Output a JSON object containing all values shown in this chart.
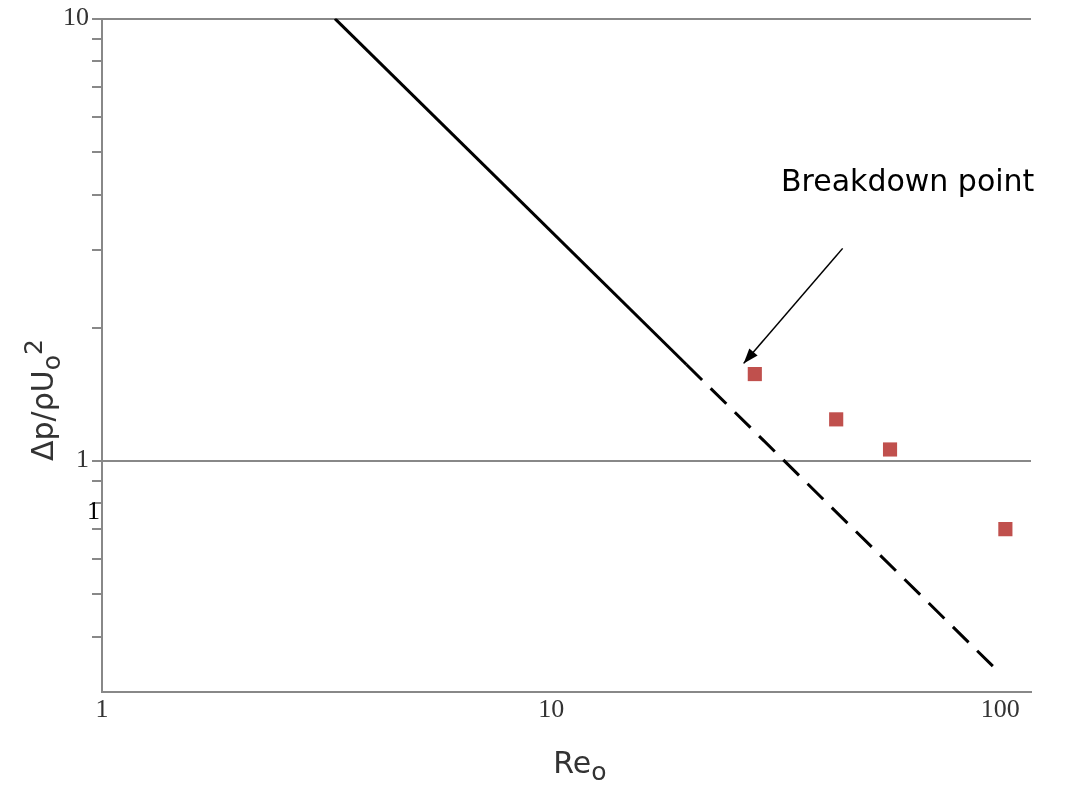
{
  "chart_data": {
    "type": "scatter",
    "xlabel": "Re$_{o}$",
    "ylabel": "Δp/ρU$_{o}$$^{2}$",
    "log": "xy",
    "xlim": [
      1,
      117
    ],
    "ylim": [
      0.3,
      10
    ],
    "xticks": [
      1,
      10,
      100
    ],
    "yticks": [
      {
        "value": 0.4,
        "label": null
      },
      {
        "value": 0.5,
        "label": null
      },
      {
        "value": 0.6,
        "label": null
      },
      {
        "value": 0.7,
        "label": null
      },
      {
        "value": 0.8,
        "label": null
      },
      {
        "value": 0.9,
        "label": null
      },
      1,
      {
        "value": 2,
        "label": null
      },
      {
        "value": 3,
        "label": null
      },
      {
        "value": 4,
        "label": null
      },
      {
        "value": 5,
        "label": null
      },
      {
        "value": 6,
        "label": null
      },
      {
        "value": 7,
        "label": null
      },
      {
        "value": 8,
        "label": null
      },
      {
        "value": 9,
        "label": null
      },
      10
    ],
    "grid": "y",
    "legend": false,
    "series": [
      {
        "type": "line",
        "color": "#000000",
        "line_style": "solid",
        "marker": "none",
        "x": [
          3.3,
          20
        ],
        "values": [
          10,
          1.65
        ]
      },
      {
        "type": "line",
        "color": "#000000",
        "line_style": "dashed",
        "marker": "none",
        "x": [
          20,
          97
        ],
        "values": [
          1.65,
          0.34
        ]
      },
      {
        "color": "#c0504d",
        "marker": "square",
        "x": [
          28.4,
          43.1,
          56.8,
          102.6
        ],
        "values": [
          1.57,
          1.24,
          1.06,
          0.7
        ]
      }
    ],
    "annotations": [
      "Breakdown point",
      "1"
    ]
  }
}
